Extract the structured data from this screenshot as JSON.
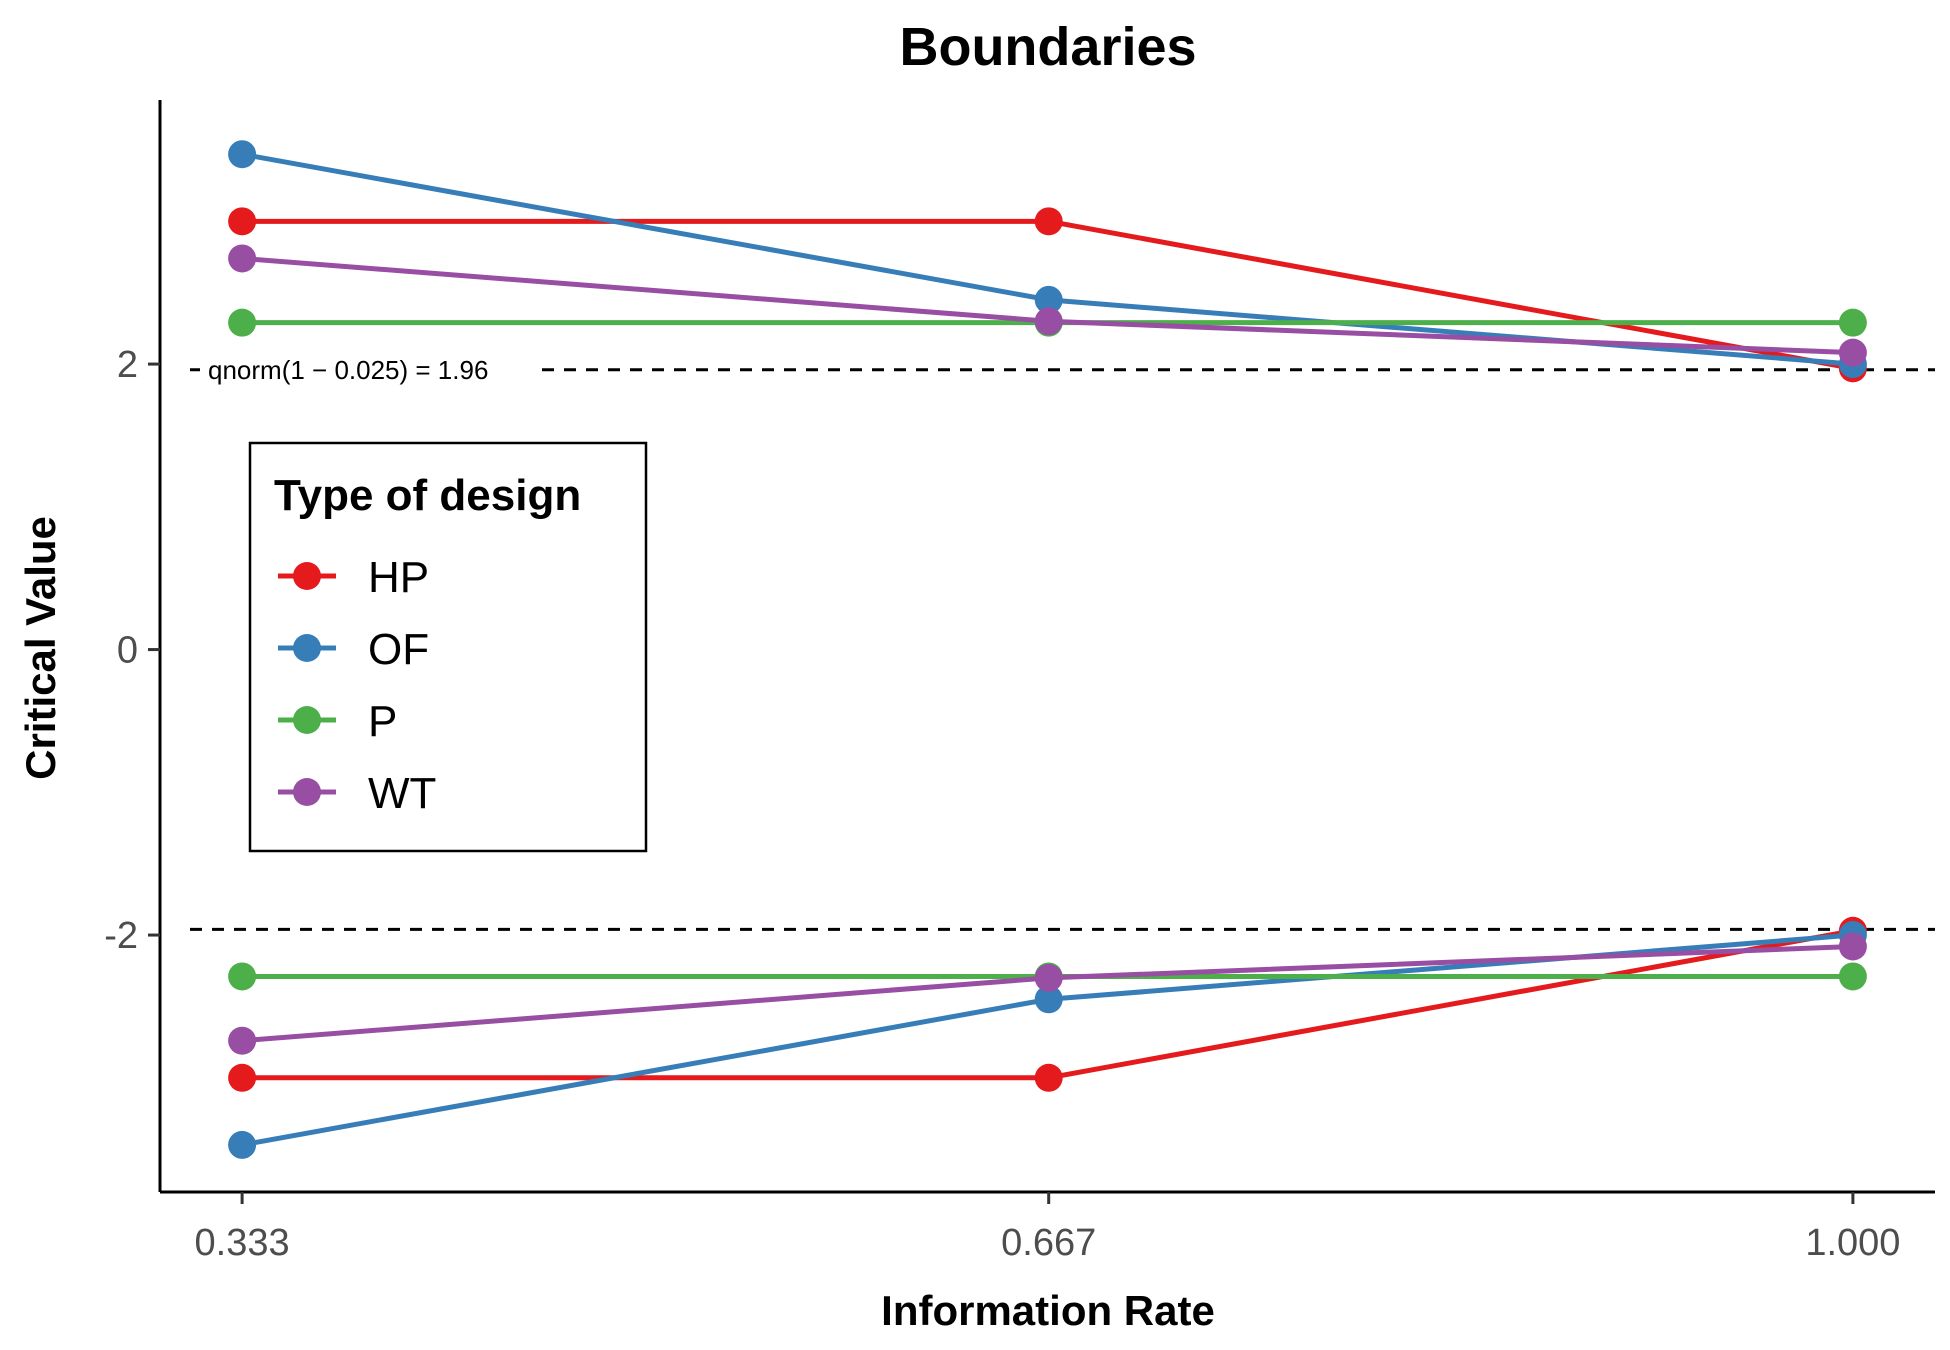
{
  "chart_data": {
    "type": "line",
    "title": "Boundaries",
    "xlabel": "Information Rate",
    "ylabel": "Critical Value",
    "x": [
      0.333,
      0.667,
      1.0
    ],
    "x_tick_labels": [
      "0.333",
      "0.667",
      "1.000"
    ],
    "y_ticks": [
      -2,
      0,
      2
    ],
    "y_tick_labels": [
      "-2",
      "0",
      "2"
    ],
    "xlim": [
      0.299,
      1.034
    ],
    "ylim": [
      -3.8,
      3.85
    ],
    "grid": false,
    "legend": {
      "title": "Type of design",
      "placement": "inside-left"
    },
    "reference_lines": [
      {
        "y": 1.96,
        "style": "dashed",
        "label": "qnorm(1 − 0.025) = 1.96"
      },
      {
        "y": -1.96,
        "style": "dashed",
        "label": ""
      }
    ],
    "series": [
      {
        "name": "HP",
        "color": "#e41a1c",
        "upper": [
          3.0,
          3.0,
          1.97
        ],
        "lower": [
          -3.0,
          -3.0,
          -1.97
        ]
      },
      {
        "name": "OF",
        "color": "#377eb8",
        "upper": [
          3.47,
          2.45,
          2.0
        ],
        "lower": [
          -3.47,
          -2.45,
          -2.0
        ]
      },
      {
        "name": "P",
        "color": "#4daf4a",
        "upper": [
          2.29,
          2.29,
          2.29
        ],
        "lower": [
          -2.29,
          -2.29,
          -2.29
        ]
      },
      {
        "name": "WT",
        "color": "#984ea3",
        "upper": [
          2.74,
          2.3,
          2.08
        ],
        "lower": [
          -2.74,
          -2.3,
          -2.08
        ]
      }
    ]
  }
}
